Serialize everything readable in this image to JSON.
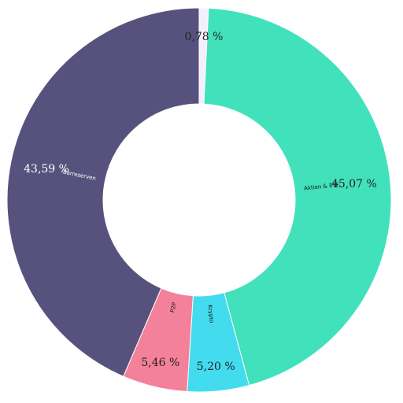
{
  "chart_data": {
    "type": "pie",
    "variant": "donut",
    "title": "",
    "slices": [
      {
        "label": "",
        "value": 0.78,
        "value_label": "0,78 %",
        "color": "#f4efff"
      },
      {
        "label": "Aktien & ETF",
        "value": 45.07,
        "value_label": "45,07 %",
        "color": "#41e2bb"
      },
      {
        "label": "Krypto",
        "value": 5.2,
        "value_label": "5,20 %",
        "color": "#43dcef"
      },
      {
        "label": "P2P",
        "value": 5.46,
        "value_label": "5,46 %",
        "color": "#f28199"
      },
      {
        "label": "Barreserven",
        "value": 43.59,
        "value_label": "43,59 %",
        "color": "#57527d"
      }
    ],
    "legend": "none",
    "start": "top",
    "direction": "clockwise"
  }
}
